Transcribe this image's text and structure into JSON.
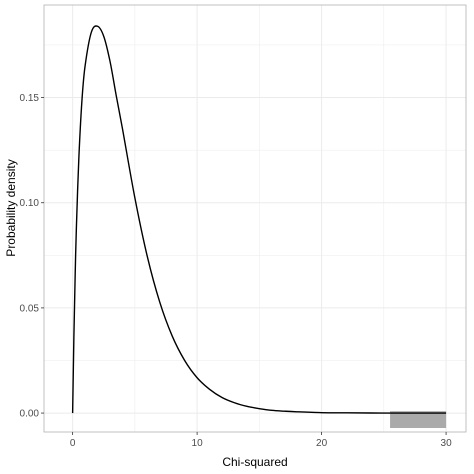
{
  "chart_data": {
    "type": "line",
    "title": "",
    "xlabel": "Chi-squared",
    "ylabel": "Probability density",
    "xlim": [
      -2.3,
      31.6
    ],
    "ylim": [
      -0.009,
      0.194
    ],
    "x_ticks": [
      0,
      10,
      20,
      30
    ],
    "x_tick_labels": [
      "0",
      "10",
      "20",
      "30"
    ],
    "y_ticks": [
      0.0,
      0.05,
      0.1,
      0.15
    ],
    "y_tick_labels": [
      "0.00",
      "0.05",
      "0.10",
      "0.15"
    ],
    "grid": true,
    "series": [
      {
        "x": [
          0,
          0.1,
          0.2,
          0.3,
          0.5,
          0.75,
          1,
          1.5,
          2,
          2.5,
          3,
          3.5,
          4,
          5,
          6,
          7,
          8,
          9,
          10,
          11,
          12,
          13,
          14,
          15,
          16,
          17,
          18,
          20,
          22,
          25,
          28,
          30
        ],
        "y": [
          0,
          0.036,
          0.0646,
          0.0879,
          0.1213,
          0.1488,
          0.165,
          0.181,
          0.1839,
          0.1791,
          0.1673,
          0.151,
          0.1353,
          0.1023,
          0.0744,
          0.0527,
          0.0366,
          0.025,
          0.0168,
          0.0113,
          0.0074,
          0.0049,
          0.0032,
          0.0021,
          0.0013,
          0.0009,
          0.0006,
          0.0002,
          0.0001,
          1e-05,
          0.0,
          0.0
        ]
      }
    ],
    "shaded_region": {
      "x_from": 25.5,
      "x_to": 30,
      "color": "#aaaaaa"
    },
    "line_color": "#000000",
    "panel_border_color": "#b3b3b3",
    "grid_color": "#ebebeb"
  }
}
